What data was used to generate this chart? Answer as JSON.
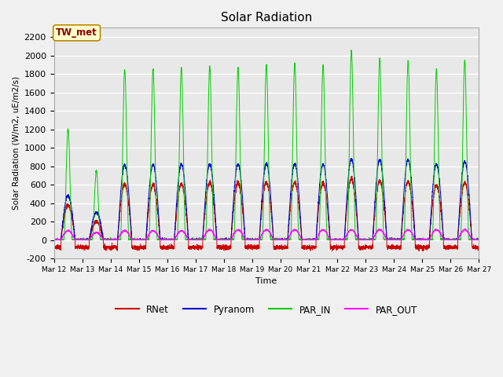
{
  "title": "Solar Radiation",
  "ylabel": "Solar Radiation (W/m2, uE/m2/s)",
  "xlabel": "Time",
  "ylim": [
    -200,
    2300
  ],
  "yticks": [
    -200,
    0,
    200,
    400,
    600,
    800,
    1000,
    1200,
    1400,
    1600,
    1800,
    2000,
    2200
  ],
  "xlim_days": [
    12,
    27
  ],
  "xtick_labels": [
    "Mar 12",
    "Mar 13",
    "Mar 14",
    "Mar 15",
    "Mar 16",
    "Mar 17",
    "Mar 18",
    "Mar 19",
    "Mar 20",
    "Mar 21",
    "Mar 22",
    "Mar 23",
    "Mar 24",
    "Mar 25",
    "Mar 26",
    "Mar 27"
  ],
  "station_label": "TW_met",
  "colors": {
    "RNet": "#cc0000",
    "Pyranom": "#0000cc",
    "PAR_IN": "#00cc00",
    "PAR_OUT": "#ff00ff"
  },
  "background_color": "#e8e8e8",
  "fig_background": "#f0f0f0",
  "grid_color": "#ffffff",
  "num_days": 15,
  "points_per_day": 288,
  "day_peaks_PAR_IN": [
    1200,
    750,
    1850,
    1850,
    1870,
    1880,
    1870,
    1900,
    1910,
    1900,
    2050,
    1970,
    1940,
    1840,
    1950
  ],
  "day_peaks_Pyranom": [
    480,
    300,
    810,
    820,
    820,
    820,
    820,
    825,
    825,
    820,
    875,
    870,
    865,
    820,
    850
  ],
  "day_peaks_RNet": [
    380,
    200,
    610,
    600,
    610,
    625,
    620,
    625,
    625,
    620,
    660,
    640,
    630,
    590,
    620
  ],
  "day_peaks_PAR_OUT": [
    100,
    80,
    100,
    100,
    100,
    110,
    110,
    110,
    110,
    110,
    110,
    110,
    110,
    110,
    110
  ]
}
